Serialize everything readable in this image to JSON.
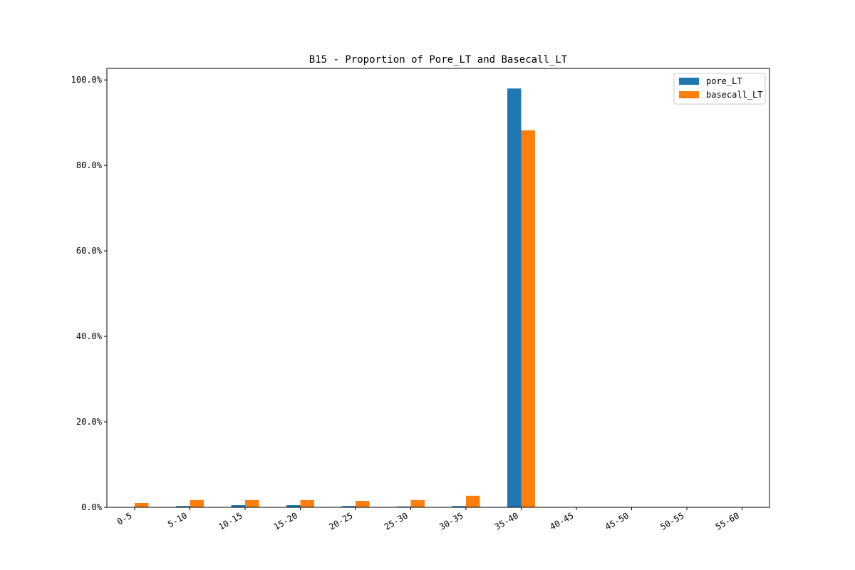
{
  "chart_data": {
    "type": "bar",
    "title": "B15 -  Proportion of Pore_LT and Basecall_LT",
    "xlabel": "",
    "ylabel": "",
    "categories": [
      "0-5",
      "5-10",
      "10-15",
      "15-20",
      "20-25",
      "25-30",
      "30-35",
      "35-40",
      "40-45",
      "45-50",
      "50-55",
      "55-60"
    ],
    "series": [
      {
        "name": "pore_LT",
        "color": "#1f77b4",
        "values": [
          0.0,
          0.3,
          0.5,
          0.5,
          0.3,
          0.2,
          0.3,
          98.0,
          0.0,
          0.0,
          0.0,
          0.0
        ]
      },
      {
        "name": "basecall_LT",
        "color": "#ff7f0e",
        "values": [
          1.0,
          1.7,
          1.7,
          1.7,
          1.5,
          1.7,
          2.7,
          88.2,
          0.0,
          0.0,
          0.0,
          0.0
        ]
      }
    ],
    "yticks": [
      0,
      20,
      40,
      60,
      80,
      100
    ],
    "ytick_labels": [
      "0.0%",
      "20.0%",
      "40.0%",
      "60.0%",
      "80.0%",
      "100.0%"
    ],
    "ylim": [
      0,
      102.7
    ],
    "grid": false,
    "legend_position": "top-right"
  }
}
